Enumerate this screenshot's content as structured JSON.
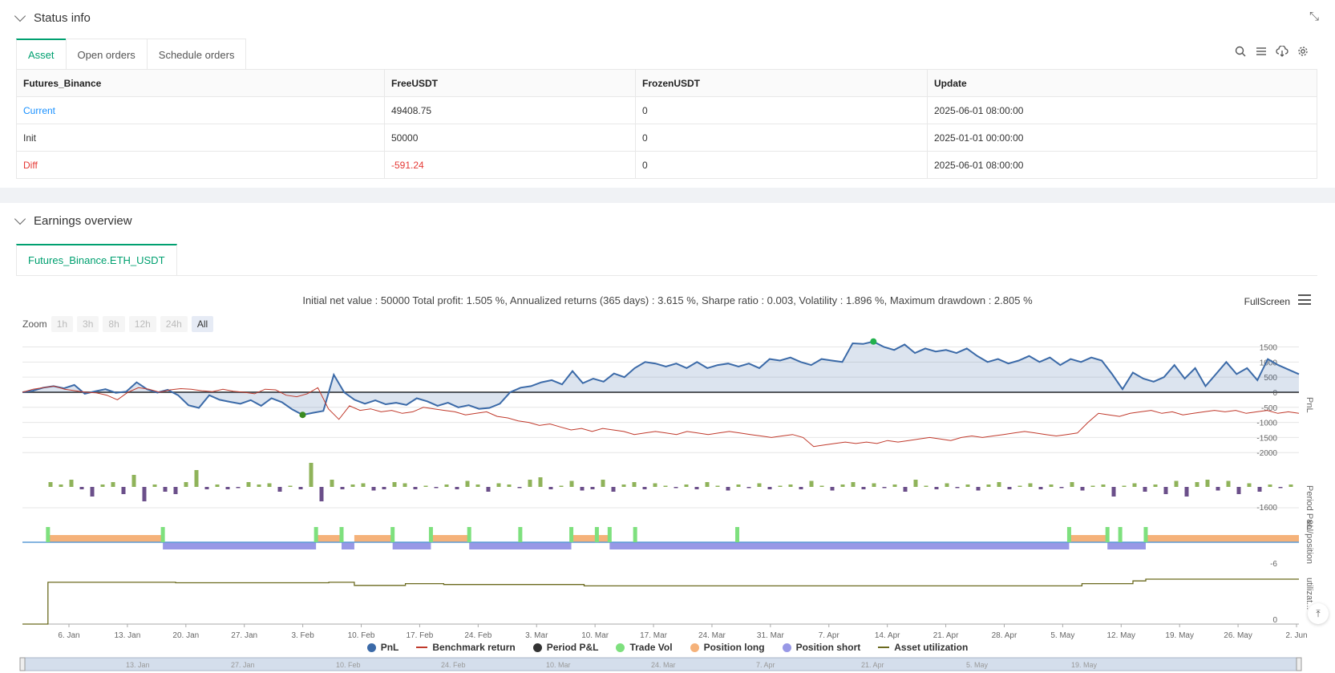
{
  "status": {
    "title": "Status info",
    "tabs": [
      {
        "label": "Asset"
      },
      {
        "label": "Open orders"
      },
      {
        "label": "Schedule orders"
      }
    ],
    "table": {
      "headers": [
        "Futures_Binance",
        "FreeUSDT",
        "FrozenUSDT",
        "Update"
      ],
      "rows": [
        {
          "label": "Current",
          "free": "49408.75",
          "frozen": "0",
          "update": "2025-06-01 08:00:00"
        },
        {
          "label": "Init",
          "free": "50000",
          "frozen": "0",
          "update": "2025-01-01 00:00:00"
        },
        {
          "label": "Diff",
          "free": "-591.24",
          "frozen": "0",
          "update": "2025-06-01 08:00:00"
        }
      ]
    }
  },
  "earnings": {
    "title": "Earnings overview",
    "tab": "Futures_Binance.ETH_USDT",
    "stats": "Initial net value : 50000 Total profit: 1.505 %, Annualized returns (365 days) : 3.615 %, Sharpe ratio : 0.003, Volatility : 1.896 %, Maximum drawdown : 2.805 %",
    "fullscreen": "FullScreen",
    "zoom": {
      "label": "Zoom",
      "buttons": [
        "1h",
        "3h",
        "8h",
        "12h",
        "24h",
        "All"
      ]
    },
    "legend": [
      "PnL",
      "Benchmark return",
      "Period P&L",
      "Trade Vol",
      "Position long",
      "Position short",
      "Asset utilization"
    ]
  },
  "colors": {
    "pnl": "#3b6aa8",
    "benchmark": "#c0392b",
    "period_pos": "#8fb35a",
    "period_neg": "#6b4f8a",
    "trade_vol": "#7ee07e",
    "long": "#f5b27a",
    "short": "#9898e6",
    "util": "#6b6a1f",
    "accent": "#00a070"
  },
  "chart_data": {
    "type": "line",
    "x_ticks": [
      "6. Jan",
      "13. Jan",
      "20. Jan",
      "27. Jan",
      "3. Feb",
      "10. Feb",
      "17. Feb",
      "24. Feb",
      "3. Mar",
      "10. Mar",
      "17. Mar",
      "24. Mar",
      "31. Mar",
      "7. Apr",
      "14. Apr",
      "21. Apr",
      "28. Apr",
      "5. May",
      "12. May",
      "19. May",
      "26. May",
      "2. Jun"
    ],
    "navigator_ticks": [
      "13. Jan",
      "27. Jan",
      "10. Feb",
      "24. Feb",
      "10. Mar",
      "24. Mar",
      "7. Apr",
      "21. Apr",
      "5. May",
      "19. May"
    ],
    "pnl_axis": {
      "label": "PnL",
      "ticks": [
        1500,
        1000,
        500,
        0,
        -500,
        -1000,
        -1500,
        -2000
      ]
    },
    "period_axis": {
      "label": "Period P&L",
      "tick": "-1600"
    },
    "position_axis": {
      "label": "vol/position",
      "tick": "-6"
    },
    "util_axis": {
      "label": "utilizat...",
      "tick": "0"
    },
    "pnl": [
      0,
      50,
      150,
      200,
      130,
      240,
      -50,
      30,
      100,
      -20,
      20,
      330,
      100,
      -10,
      80,
      -100,
      -430,
      -520,
      -100,
      -250,
      -320,
      -380,
      -260,
      -450,
      -200,
      -330,
      -570,
      -750,
      -680,
      -620,
      580,
      0,
      -250,
      -380,
      -270,
      -400,
      -350,
      -420,
      -200,
      -300,
      -450,
      -350,
      -500,
      -430,
      -550,
      -520,
      -380,
      0,
      150,
      200,
      330,
      400,
      260,
      700,
      300,
      450,
      350,
      620,
      500,
      800,
      1000,
      950,
      850,
      950,
      800,
      1000,
      800,
      900,
      950,
      850,
      950,
      800,
      1100,
      1050,
      1150,
      1000,
      900,
      1100,
      1050,
      1000,
      1620,
      1600,
      1680,
      1500,
      1400,
      1580,
      1300,
      1450,
      1350,
      1400,
      1300,
      1450,
      1200,
      1000,
      1100,
      950,
      1050,
      1200,
      1000,
      1150,
      900,
      1100,
      1000,
      1150,
      1050,
      600,
      100,
      650,
      450,
      350,
      500,
      900,
      450,
      800,
      200,
      600,
      1000,
      600,
      800,
      400,
      1100,
      900,
      750,
      600
    ],
    "benchmark": [
      0,
      100,
      150,
      200,
      100,
      50,
      0,
      -20,
      -100,
      -250,
      0,
      150,
      100,
      0,
      80,
      120,
      100,
      50,
      20,
      100,
      30,
      0,
      -50,
      100,
      80,
      -100,
      -150,
      -50,
      150,
      -550,
      -900,
      -450,
      -600,
      -550,
      -650,
      -600,
      -700,
      -650,
      -500,
      -550,
      -600,
      -650,
      -750,
      -700,
      -650,
      -800,
      -850,
      -950,
      -1000,
      -1100,
      -1050,
      -1150,
      -1250,
      -1200,
      -1300,
      -1200,
      -1250,
      -1300,
      -1400,
      -1350,
      -1300,
      -1350,
      -1400,
      -1300,
      -1350,
      -1400,
      -1350,
      -1300,
      -1350,
      -1400,
      -1450,
      -1500,
      -1450,
      -1400,
      -1500,
      -1800,
      -1750,
      -1700,
      -1650,
      -1700,
      -1650,
      -1700,
      -1600,
      -1650,
      -1600,
      -1550,
      -1500,
      -1550,
      -1600,
      -1500,
      -1450,
      -1500,
      -1450,
      -1400,
      -1350,
      -1300,
      -1350,
      -1400,
      -1450,
      -1400,
      -1350,
      -1000,
      -700,
      -750,
      -800,
      -700,
      -650,
      -600,
      -700,
      -650,
      -750,
      -700,
      -650,
      -600,
      -650,
      -600,
      -700,
      -650,
      -600,
      -700,
      -650,
      -700
    ],
    "period_pnl": [
      20,
      10,
      30,
      -10,
      -40,
      10,
      20,
      -30,
      50,
      -60,
      10,
      -20,
      -30,
      20,
      70,
      -10,
      10,
      -10,
      -5,
      20,
      10,
      15,
      -20,
      5,
      -10,
      100,
      -60,
      30,
      -10,
      10,
      15,
      -15,
      -10,
      20,
      15,
      -10,
      5,
      -5,
      10,
      -10,
      25,
      10,
      -20,
      15,
      10,
      -5,
      30,
      40,
      -10,
      5,
      25,
      -15,
      -10,
      30,
      -20,
      10,
      20,
      -10,
      15,
      5,
      -5,
      10,
      -10,
      20,
      5,
      -15,
      10,
      -5,
      15,
      -10,
      5,
      10,
      -10,
      25,
      5,
      -15,
      10,
      20,
      -10,
      15,
      -5,
      10,
      -20,
      30,
      5,
      -10,
      15,
      -5,
      10,
      -15,
      10,
      20,
      -10,
      5,
      15,
      -10,
      10,
      -5,
      20,
      -15,
      5,
      10,
      -40,
      5,
      15,
      -20,
      10,
      -30,
      25,
      -40,
      20,
      30,
      -15,
      25,
      -30,
      15,
      -20,
      10,
      -5,
      10
    ],
    "trade_vol": [
      [
        0.02,
        1
      ],
      [
        0.11,
        1
      ],
      [
        0.23,
        1
      ],
      [
        0.25,
        1
      ],
      [
        0.29,
        1
      ],
      [
        0.32,
        1
      ],
      [
        0.35,
        1
      ],
      [
        0.39,
        1
      ],
      [
        0.43,
        1
      ],
      [
        0.45,
        1
      ],
      [
        0.46,
        1
      ],
      [
        0.48,
        1
      ],
      [
        0.56,
        1
      ],
      [
        0.82,
        1
      ],
      [
        0.85,
        1
      ],
      [
        0.86,
        1
      ],
      [
        0.88,
        1
      ]
    ],
    "position": [
      [
        0.02,
        0.11,
        "long"
      ],
      [
        0.11,
        0.23,
        "short"
      ],
      [
        0.23,
        0.25,
        "long"
      ],
      [
        0.25,
        0.26,
        "short"
      ],
      [
        0.26,
        0.29,
        "long"
      ],
      [
        0.29,
        0.32,
        "short"
      ],
      [
        0.32,
        0.35,
        "long"
      ],
      [
        0.35,
        0.43,
        "short"
      ],
      [
        0.43,
        0.46,
        "long"
      ],
      [
        0.46,
        0.82,
        "short"
      ],
      [
        0.82,
        0.85,
        "long"
      ],
      [
        0.85,
        0.88,
        "short"
      ],
      [
        0.88,
        1.0,
        "long"
      ]
    ],
    "utilization": [
      [
        0.0,
        0.0
      ],
      [
        0.02,
        0.93
      ],
      [
        0.11,
        0.93
      ],
      [
        0.12,
        0.92
      ],
      [
        0.23,
        0.92
      ],
      [
        0.24,
        0.93
      ],
      [
        0.25,
        0.93
      ],
      [
        0.26,
        0.86
      ],
      [
        0.29,
        0.86
      ],
      [
        0.3,
        0.9
      ],
      [
        0.32,
        0.9
      ],
      [
        0.33,
        0.88
      ],
      [
        0.43,
        0.88
      ],
      [
        0.44,
        0.85
      ],
      [
        0.82,
        0.85
      ],
      [
        0.83,
        0.9
      ],
      [
        0.86,
        0.9
      ],
      [
        0.87,
        0.96
      ],
      [
        0.88,
        1.0
      ],
      [
        1.0,
        1.0
      ]
    ]
  }
}
